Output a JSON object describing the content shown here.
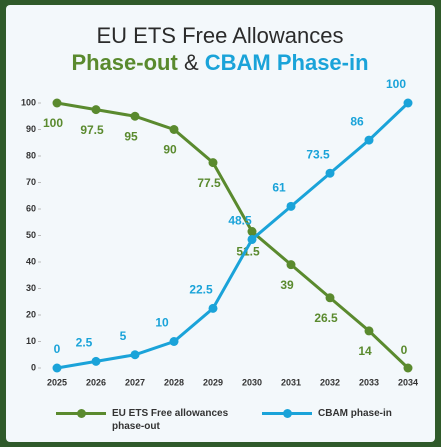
{
  "chart_data": {
    "type": "line",
    "title": "EU ETS Free Allowances",
    "subtitle": [
      "Phase-out",
      "&",
      "CBAM Phase-in"
    ],
    "categories": [
      "2025",
      "2026",
      "2027",
      "2028",
      "2029",
      "2030",
      "2031",
      "2032",
      "2033",
      "2034"
    ],
    "series": [
      {
        "name": "EU ETS Free allowances phase-out",
        "color": "#5a8a2e",
        "values": [
          100,
          97.5,
          95,
          90,
          77.5,
          51.5,
          39,
          26.5,
          14,
          0
        ]
      },
      {
        "name": "CBAM phase-in",
        "color": "#1aa3d9",
        "values": [
          0,
          2.5,
          5,
          10,
          22.5,
          48.5,
          61,
          73.5,
          86,
          100
        ]
      }
    ],
    "ylim": [
      0,
      100
    ],
    "yticks": [
      0,
      10,
      20,
      30,
      40,
      50,
      60,
      70,
      80,
      90,
      100
    ],
    "grid": false
  }
}
